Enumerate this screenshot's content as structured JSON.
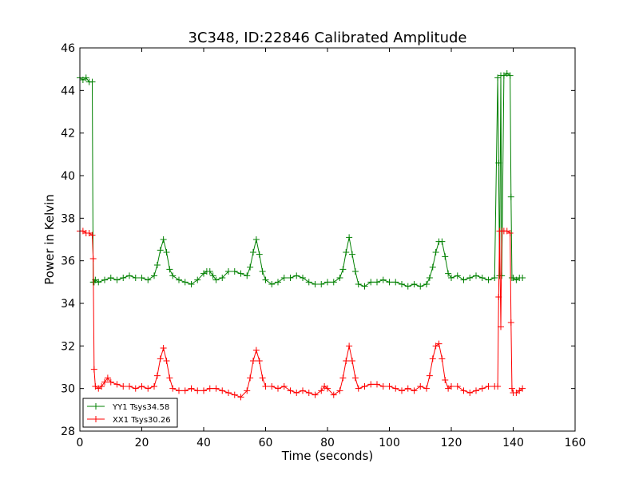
{
  "chart_data": {
    "type": "line",
    "title": "3C348, ID:22846 Calibrated Amplitude",
    "xlabel": "Time (seconds)",
    "ylabel": "Power in Kelvin",
    "xlim": [
      0,
      160
    ],
    "ylim": [
      28,
      46
    ],
    "xticks": [
      "0",
      "20",
      "40",
      "60",
      "80",
      "100",
      "120",
      "140",
      "160"
    ],
    "yticks": [
      "28",
      "30",
      "32",
      "34",
      "36",
      "38",
      "40",
      "42",
      "44",
      "46"
    ],
    "grid": false,
    "legend_position": "lower-left",
    "marker": "+",
    "series": [
      {
        "name": "YY1 Tsys34.58",
        "color": "#008000",
        "x": [
          0,
          1,
          2,
          3,
          4,
          4.3,
          4.6,
          5,
          6,
          8,
          10,
          12,
          14,
          16,
          18,
          20,
          22,
          24,
          25,
          26,
          27,
          28,
          29,
          30,
          32,
          34,
          36,
          38,
          40,
          41,
          42,
          43,
          44,
          46,
          48,
          50,
          52,
          54,
          55,
          56,
          57,
          58,
          59,
          60,
          62,
          64,
          66,
          68,
          70,
          72,
          74,
          76,
          78,
          80,
          82,
          84,
          85,
          86,
          87,
          88,
          89,
          90,
          92,
          94,
          96,
          98,
          100,
          102,
          104,
          106,
          108,
          110,
          112,
          113,
          114,
          115,
          116,
          117,
          118,
          119,
          120,
          122,
          124,
          126,
          128,
          130,
          132,
          134,
          135,
          135.3,
          135.6,
          136,
          136.3,
          137,
          138,
          139,
          139.3,
          139.6,
          140,
          141,
          142,
          143
        ],
        "y": [
          44.6,
          44.5,
          44.6,
          44.4,
          44.4,
          35.0,
          35.0,
          35.1,
          35.0,
          35.1,
          35.2,
          35.1,
          35.2,
          35.3,
          35.2,
          35.2,
          35.1,
          35.3,
          35.8,
          36.5,
          37.0,
          36.4,
          35.6,
          35.3,
          35.1,
          35.0,
          34.9,
          35.1,
          35.4,
          35.5,
          35.5,
          35.3,
          35.1,
          35.2,
          35.5,
          35.5,
          35.4,
          35.3,
          35.7,
          36.4,
          37.0,
          36.3,
          35.5,
          35.1,
          34.9,
          35.0,
          35.2,
          35.2,
          35.3,
          35.2,
          35.0,
          34.9,
          34.9,
          35.0,
          35.0,
          35.2,
          35.6,
          36.4,
          37.1,
          36.3,
          35.5,
          34.9,
          34.8,
          35.0,
          35.0,
          35.1,
          35.0,
          35.0,
          34.9,
          34.8,
          34.9,
          34.8,
          34.9,
          35.2,
          35.7,
          36.4,
          36.9,
          36.9,
          36.2,
          35.4,
          35.2,
          35.3,
          35.1,
          35.2,
          35.3,
          35.2,
          35.1,
          35.2,
          44.6,
          40.6,
          35.3,
          44.7,
          35.3,
          44.7,
          44.8,
          44.7,
          39.0,
          35.2,
          35.2,
          35.1,
          35.2,
          35.2
        ]
      },
      {
        "name": "XX1 Tsys30.26",
        "color": "#ff0000",
        "x": [
          0,
          1,
          2,
          3,
          4,
          4.3,
          4.6,
          5,
          6,
          7,
          8,
          9,
          10,
          12,
          14,
          16,
          18,
          20,
          22,
          24,
          25,
          26,
          27,
          28,
          29,
          30,
          32,
          34,
          36,
          38,
          40,
          42,
          44,
          46,
          48,
          50,
          52,
          54,
          55,
          56,
          57,
          58,
          59,
          60,
          62,
          64,
          66,
          68,
          70,
          72,
          74,
          76,
          78,
          79,
          80,
          82,
          84,
          85,
          86,
          87,
          88,
          89,
          90,
          92,
          94,
          96,
          98,
          100,
          102,
          104,
          106,
          108,
          110,
          112,
          113,
          114,
          115,
          116,
          117,
          118,
          119,
          120,
          122,
          124,
          126,
          128,
          130,
          132,
          134,
          135,
          135.3,
          135.6,
          136,
          136.3,
          137,
          138,
          139,
          139.3,
          139.6,
          140,
          141,
          142,
          143
        ],
        "y": [
          37.4,
          37.4,
          37.3,
          37.3,
          37.2,
          36.1,
          30.9,
          30.1,
          30.0,
          30.1,
          30.3,
          30.5,
          30.3,
          30.2,
          30.1,
          30.1,
          30.0,
          30.1,
          30.0,
          30.1,
          30.6,
          31.4,
          31.9,
          31.3,
          30.5,
          30.0,
          29.9,
          29.9,
          30.0,
          29.9,
          29.9,
          30.0,
          30.0,
          29.9,
          29.8,
          29.7,
          29.6,
          29.9,
          30.5,
          31.3,
          31.8,
          31.3,
          30.5,
          30.1,
          30.1,
          30.0,
          30.1,
          29.9,
          29.8,
          29.9,
          29.8,
          29.7,
          29.9,
          30.1,
          30.0,
          29.7,
          29.9,
          30.5,
          31.3,
          32.0,
          31.3,
          30.5,
          30.0,
          30.1,
          30.2,
          30.2,
          30.1,
          30.1,
          30.0,
          29.9,
          30.0,
          29.9,
          30.1,
          30.0,
          30.6,
          31.4,
          32.0,
          32.1,
          31.4,
          30.4,
          30.0,
          30.1,
          30.1,
          29.9,
          29.8,
          29.9,
          30.0,
          30.1,
          30.1,
          30.1,
          34.3,
          37.4,
          32.9,
          37.4,
          37.4,
          37.4,
          37.3,
          33.1,
          30.0,
          29.8,
          29.8,
          29.9,
          30.0
        ]
      }
    ]
  }
}
